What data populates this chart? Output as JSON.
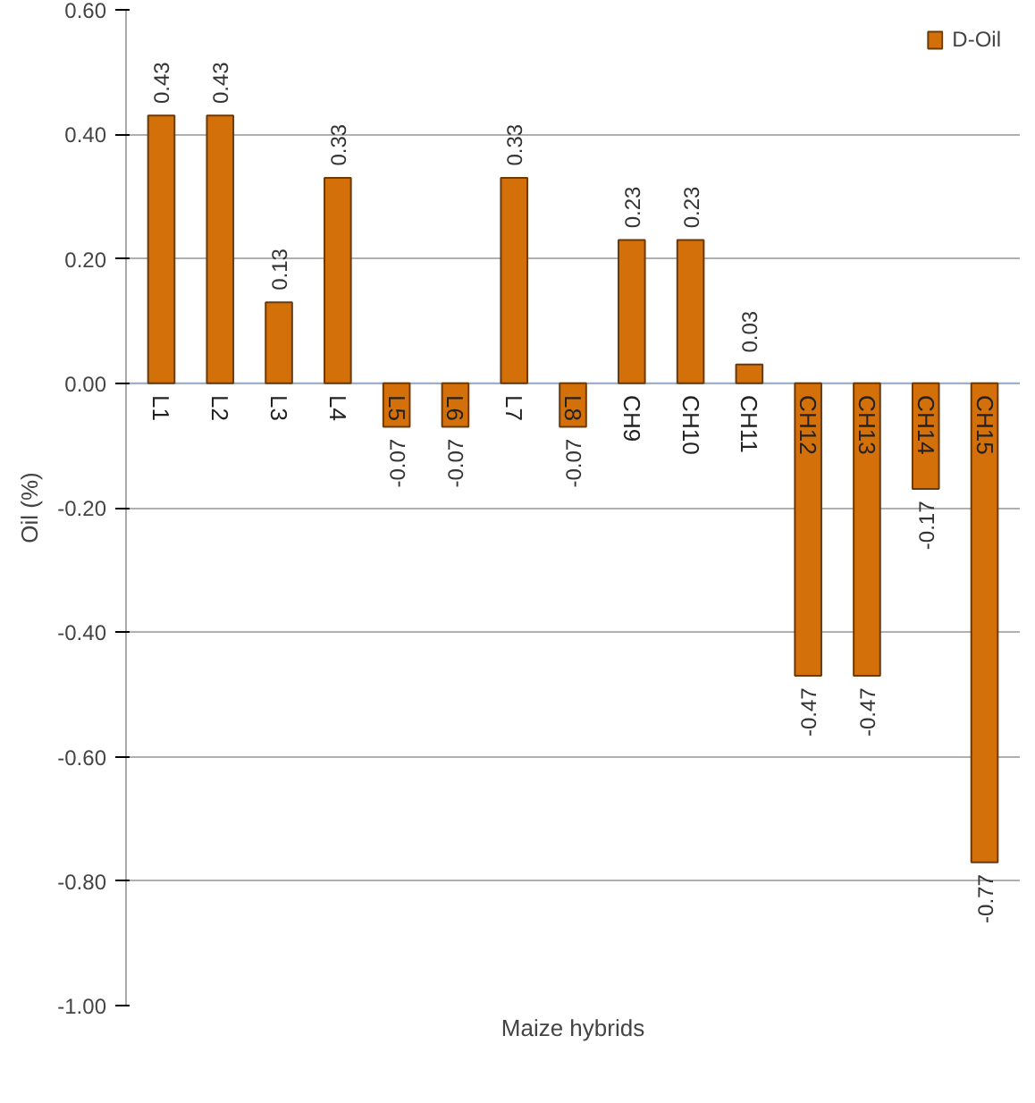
{
  "chart_data": {
    "type": "bar",
    "xlabel": "Maize hybrids",
    "ylabel": "Oil (%)",
    "categories": [
      "L1",
      "L2",
      "L3",
      "L4",
      "L5",
      "L6",
      "L7",
      "L8",
      "CH9",
      "CH10",
      "CH11",
      "CH12",
      "CH13",
      "CH14",
      "CH15"
    ],
    "series": [
      {
        "name": "D-Oil",
        "color": "#d4700a",
        "values": [
          0.43,
          0.43,
          0.13,
          0.33,
          -0.07,
          -0.07,
          0.33,
          -0.07,
          0.23,
          0.23,
          0.03,
          -0.47,
          -0.47,
          -0.17,
          -0.77
        ]
      }
    ],
    "ylim": [
      -1.0,
      0.6
    ],
    "yticks": [
      {
        "value": -1.0,
        "label": "-1.00"
      },
      {
        "value": -0.8,
        "label": "-0.80"
      },
      {
        "value": -0.6,
        "label": "-0.60"
      },
      {
        "value": -0.4,
        "label": "-0.40"
      },
      {
        "value": -0.2,
        "label": "-0.20"
      },
      {
        "value": 0,
        "label": "0.00"
      },
      {
        "value": 0.2,
        "label": "0.20"
      },
      {
        "value": 0.4,
        "label": "0.40"
      },
      {
        "value": 0.6,
        "label": "0.60"
      }
    ],
    "grid": "y",
    "legend": "top right",
    "data_labels": true
  }
}
